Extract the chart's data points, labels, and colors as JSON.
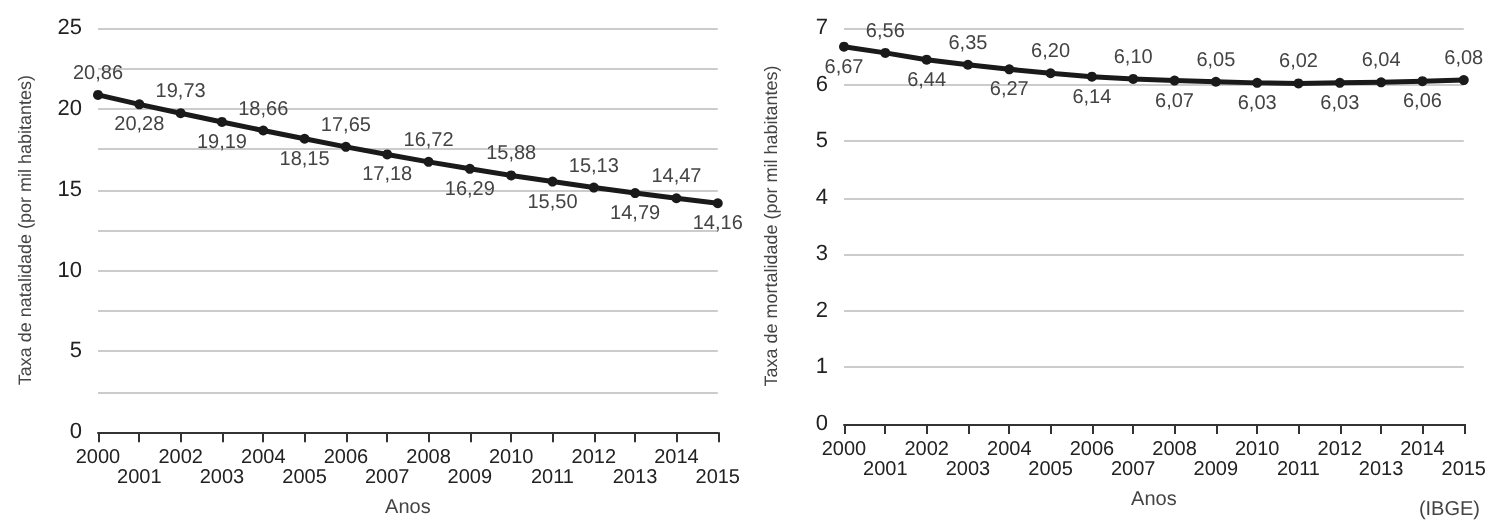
{
  "chart_data": [
    {
      "type": "line",
      "xlabel": "Anos",
      "ylabel": "Taxa de natalidade (por mil habitantes)",
      "categories": [
        "2000",
        "2001",
        "2002",
        "2003",
        "2004",
        "2005",
        "2006",
        "2007",
        "2008",
        "2009",
        "2010",
        "2011",
        "2012",
        "2013",
        "2014",
        "2015"
      ],
      "series": [
        {
          "color": "#1a1a1a",
          "values": [
            20.86,
            20.28,
            19.73,
            19.19,
            18.66,
            18.15,
            17.65,
            17.18,
            16.72,
            16.29,
            15.88,
            15.5,
            15.13,
            14.79,
            14.47,
            14.16
          ],
          "value_labels": [
            "20,86",
            "20,28",
            "19,73",
            "19,19",
            "18,66",
            "18,15",
            "17,65",
            "17,18",
            "16,72",
            "16,29",
            "15,88",
            "15,50",
            "15,13",
            "14,79",
            "14,47",
            "14,16"
          ]
        }
      ],
      "ylim": [
        0,
        25
      ],
      "yticks": [
        0,
        {
          "value": 2.5,
          "label": null
        },
        5,
        {
          "value": 7.5,
          "label": null
        },
        10,
        {
          "value": 12.5,
          "label": null
        },
        15,
        {
          "value": 17.5,
          "label": null
        },
        20,
        {
          "value": 22.5,
          "label": null
        },
        25
      ],
      "grid": "y",
      "marker": "circle",
      "line_style": "solid"
    },
    {
      "type": "line",
      "xlabel": "Anos",
      "ylabel": "Taxa de mortalidade (por mil habitantes)",
      "categories": [
        "2000",
        "2001",
        "2002",
        "2003",
        "2004",
        "2005",
        "2006",
        "2007",
        "2008",
        "2009",
        "2010",
        "2011",
        "2012",
        "2013",
        "2014",
        "2015"
      ],
      "series": [
        {
          "color": "#1a1a1a",
          "values": [
            6.67,
            6.56,
            6.44,
            6.35,
            6.27,
            6.2,
            6.14,
            6.1,
            6.07,
            6.05,
            6.03,
            6.02,
            6.03,
            6.04,
            6.06,
            6.08
          ],
          "value_labels": [
            "6,67",
            "6,56",
            "6,44",
            "6,35",
            "6,27",
            "6,20",
            "6,14",
            "6,10",
            "6,07",
            "6,05",
            "6,03",
            "6,02",
            "6,03",
            "6,04",
            "6,06",
            "6,08"
          ]
        }
      ],
      "ylim": [
        0,
        7
      ],
      "yticks": [
        0,
        1,
        2,
        3,
        4,
        5,
        6,
        7
      ],
      "grid": "y",
      "marker": "circle",
      "line_style": "solid",
      "annotations": [
        "(IBGE)"
      ]
    }
  ]
}
